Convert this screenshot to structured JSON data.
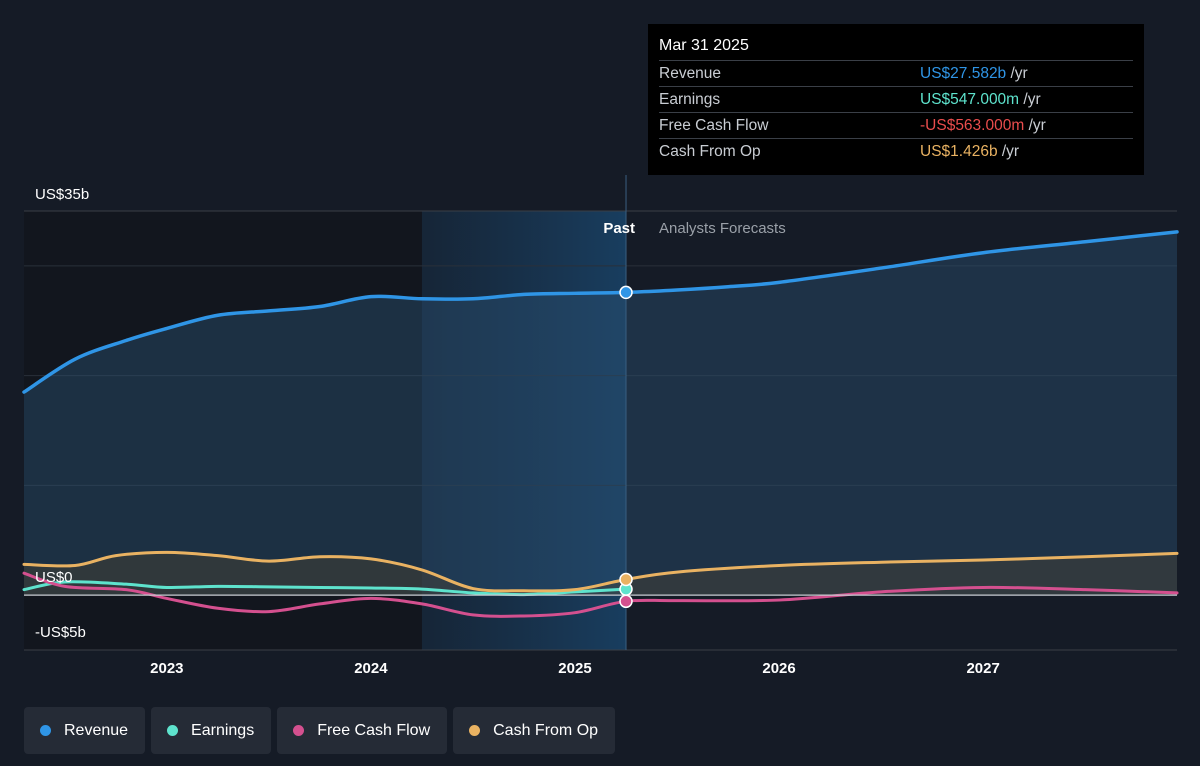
{
  "chart_data": {
    "type": "line",
    "y_labels": {
      "top": "US$35b",
      "zero": "US$0",
      "bottom": "-US$5b"
    },
    "ylim": [
      -5,
      35
    ],
    "xlim": [
      2022.3,
      2027.95
    ],
    "x_ticks": [
      {
        "value": 2023,
        "label": "2023"
      },
      {
        "value": 2024,
        "label": "2024"
      },
      {
        "value": 2025,
        "label": "2025"
      },
      {
        "value": 2026,
        "label": "2026"
      },
      {
        "value": 2027,
        "label": "2027"
      }
    ],
    "grid_lines": [
      30,
      20,
      10
    ],
    "past_label": "Past",
    "forecast_label": "Analysts Forecasts",
    "highlight_range": [
      2024.25,
      2025.25
    ],
    "divider_x": 2025.25,
    "series": [
      {
        "name": "Revenue",
        "color": "#2f95e6",
        "fill": true,
        "points": [
          [
            2022.3,
            18.5
          ],
          [
            2022.55,
            21.5
          ],
          [
            2022.8,
            23.2
          ],
          [
            2023.0,
            24.3
          ],
          [
            2023.25,
            25.5
          ],
          [
            2023.5,
            25.9
          ],
          [
            2023.75,
            26.3
          ],
          [
            2024.0,
            27.2
          ],
          [
            2024.25,
            27.0
          ],
          [
            2024.5,
            27.0
          ],
          [
            2024.75,
            27.4
          ],
          [
            2025.0,
            27.5
          ],
          [
            2025.25,
            27.582
          ],
          [
            2025.5,
            27.8
          ],
          [
            2025.75,
            28.1
          ],
          [
            2026.0,
            28.5
          ],
          [
            2026.5,
            29.8
          ],
          [
            2027.0,
            31.2
          ],
          [
            2027.5,
            32.2
          ],
          [
            2027.95,
            33.1
          ]
        ]
      },
      {
        "name": "Earnings",
        "color": "#5ee3cd",
        "fill": false,
        "points": [
          [
            2022.3,
            0.5
          ],
          [
            2022.5,
            1.2
          ],
          [
            2022.8,
            1.0
          ],
          [
            2023.0,
            0.7
          ],
          [
            2023.25,
            0.8
          ],
          [
            2023.5,
            0.75
          ],
          [
            2023.75,
            0.7
          ],
          [
            2024.0,
            0.65
          ],
          [
            2024.25,
            0.55
          ],
          [
            2024.5,
            0.2
          ],
          [
            2024.75,
            0.05
          ],
          [
            2025.0,
            0.3
          ],
          [
            2025.25,
            0.547
          ]
        ]
      },
      {
        "name": "Free Cash Flow",
        "color": "#d4508f",
        "fill": false,
        "points": [
          [
            2022.3,
            2.0
          ],
          [
            2022.5,
            0.8
          ],
          [
            2022.8,
            0.5
          ],
          [
            2023.0,
            -0.3
          ],
          [
            2023.25,
            -1.2
          ],
          [
            2023.5,
            -1.5
          ],
          [
            2023.75,
            -0.8
          ],
          [
            2024.0,
            -0.3
          ],
          [
            2024.25,
            -0.8
          ],
          [
            2024.5,
            -1.8
          ],
          [
            2024.75,
            -1.9
          ],
          [
            2025.0,
            -1.6
          ],
          [
            2025.25,
            -0.563
          ],
          [
            2025.5,
            -0.5
          ],
          [
            2026.0,
            -0.45
          ],
          [
            2026.5,
            0.3
          ],
          [
            2027.0,
            0.7
          ],
          [
            2027.5,
            0.5
          ],
          [
            2027.95,
            0.2
          ]
        ]
      },
      {
        "name": "Cash From Op",
        "color": "#e9b262",
        "fill": true,
        "points": [
          [
            2022.3,
            2.8
          ],
          [
            2022.55,
            2.7
          ],
          [
            2022.75,
            3.6
          ],
          [
            2023.0,
            3.9
          ],
          [
            2023.25,
            3.6
          ],
          [
            2023.5,
            3.1
          ],
          [
            2023.75,
            3.5
          ],
          [
            2024.0,
            3.3
          ],
          [
            2024.25,
            2.3
          ],
          [
            2024.5,
            0.6
          ],
          [
            2024.75,
            0.4
          ],
          [
            2025.0,
            0.5
          ],
          [
            2025.25,
            1.426
          ],
          [
            2025.5,
            2.1
          ],
          [
            2026.0,
            2.7
          ],
          [
            2026.5,
            3.0
          ],
          [
            2027.0,
            3.2
          ],
          [
            2027.5,
            3.5
          ],
          [
            2027.95,
            3.8
          ]
        ]
      }
    ]
  },
  "tooltip": {
    "date": "Mar 31 2025",
    "rows": [
      {
        "label": "Revenue",
        "value": "US$27.582b",
        "unit": "/yr",
        "color": "#2f95e6"
      },
      {
        "label": "Earnings",
        "value": "US$547.000m",
        "unit": "/yr",
        "color": "#5ee3cd"
      },
      {
        "label": "Free Cash Flow",
        "value": "-US$563.000m",
        "unit": "/yr",
        "color": "#ea4d4d"
      },
      {
        "label": "Cash From Op",
        "value": "US$1.426b",
        "unit": "/yr",
        "color": "#e9b262"
      }
    ]
  },
  "legend": [
    {
      "label": "Revenue",
      "color": "#2f95e6"
    },
    {
      "label": "Earnings",
      "color": "#5ee3cd"
    },
    {
      "label": "Free Cash Flow",
      "color": "#d4508f"
    },
    {
      "label": "Cash From Op",
      "color": "#e9b262"
    }
  ]
}
